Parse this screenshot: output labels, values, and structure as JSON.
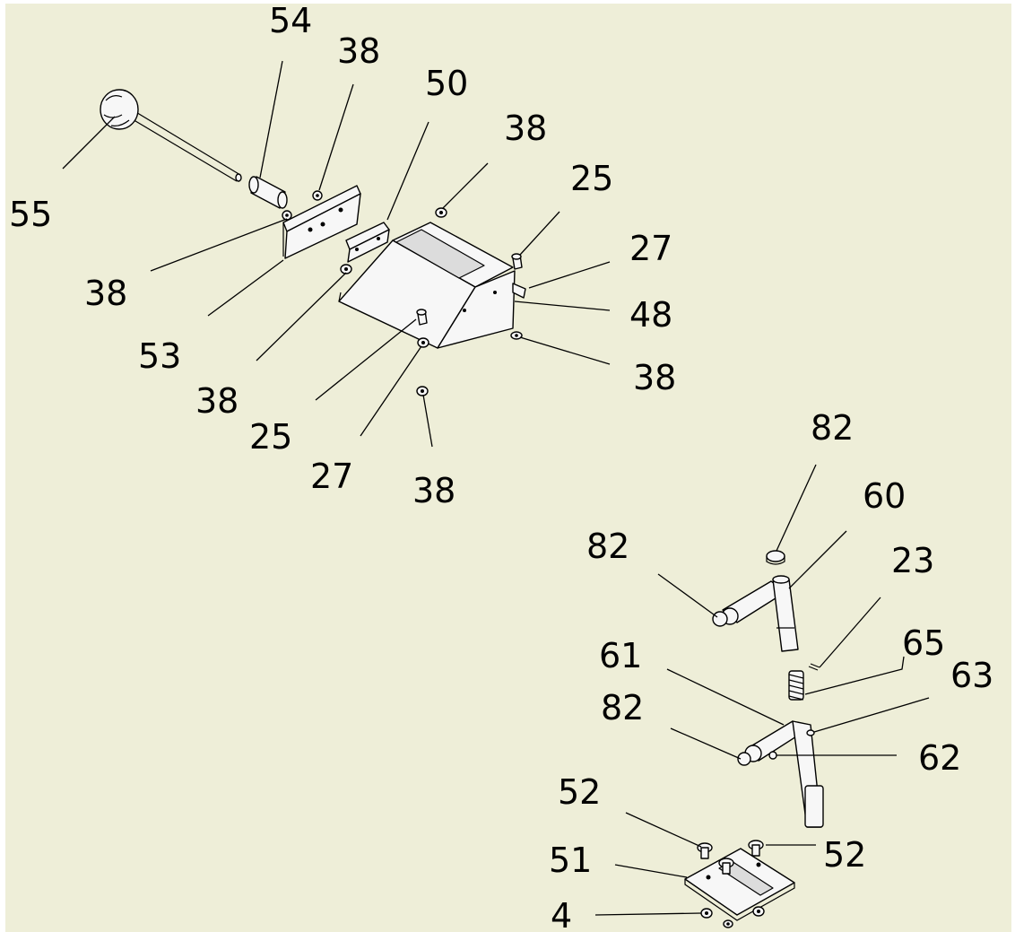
{
  "diagram": {
    "callouts": {
      "c54": "54",
      "c38_a": "38",
      "c50": "50",
      "c38_b": "38",
      "c25_a": "25",
      "c55": "55",
      "c27_a": "27",
      "c48": "48",
      "c38_c": "38",
      "c38_d": "38",
      "c53": "53",
      "c38_e": "38",
      "c25_b": "25",
      "c27_b": "27",
      "c38_f": "38",
      "c82_a": "82",
      "c60": "60",
      "c82_b": "82",
      "c23": "23",
      "c65": "65",
      "c61": "61",
      "c63": "63",
      "c82_c": "82",
      "c62": "62",
      "c52_a": "52",
      "c52_b": "52",
      "c51": "51",
      "c4": "4"
    },
    "colors": {
      "background": "#eeeed8",
      "line": "#000000",
      "part_fill": "#f7f7f7"
    }
  }
}
